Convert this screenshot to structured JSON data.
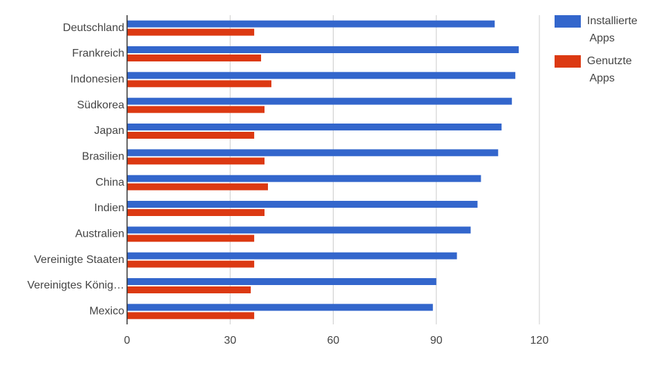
{
  "chart_data": {
    "type": "bar",
    "orientation": "horizontal",
    "categories": [
      "Deutschland",
      "Frankreich",
      "Indonesien",
      "Südkorea",
      "Japan",
      "Brasilien",
      "China",
      "Indien",
      "Australien",
      "Vereinigte Staaten",
      "Vereinigtes König…",
      "Mexico"
    ],
    "series": [
      {
        "name": "Installierte Apps",
        "color": "#3366cc",
        "values": [
          107,
          114,
          113,
          112,
          109,
          108,
          103,
          102,
          100,
          96,
          90,
          89
        ]
      },
      {
        "name": "Genutzte Apps",
        "color": "#dc3912",
        "values": [
          37,
          39,
          42,
          40,
          37,
          40,
          41,
          40,
          37,
          37,
          36,
          37
        ]
      }
    ],
    "xlim": [
      0,
      120
    ],
    "xticks": [
      0,
      30,
      60,
      90,
      120
    ],
    "grid": true,
    "legend": "right"
  }
}
